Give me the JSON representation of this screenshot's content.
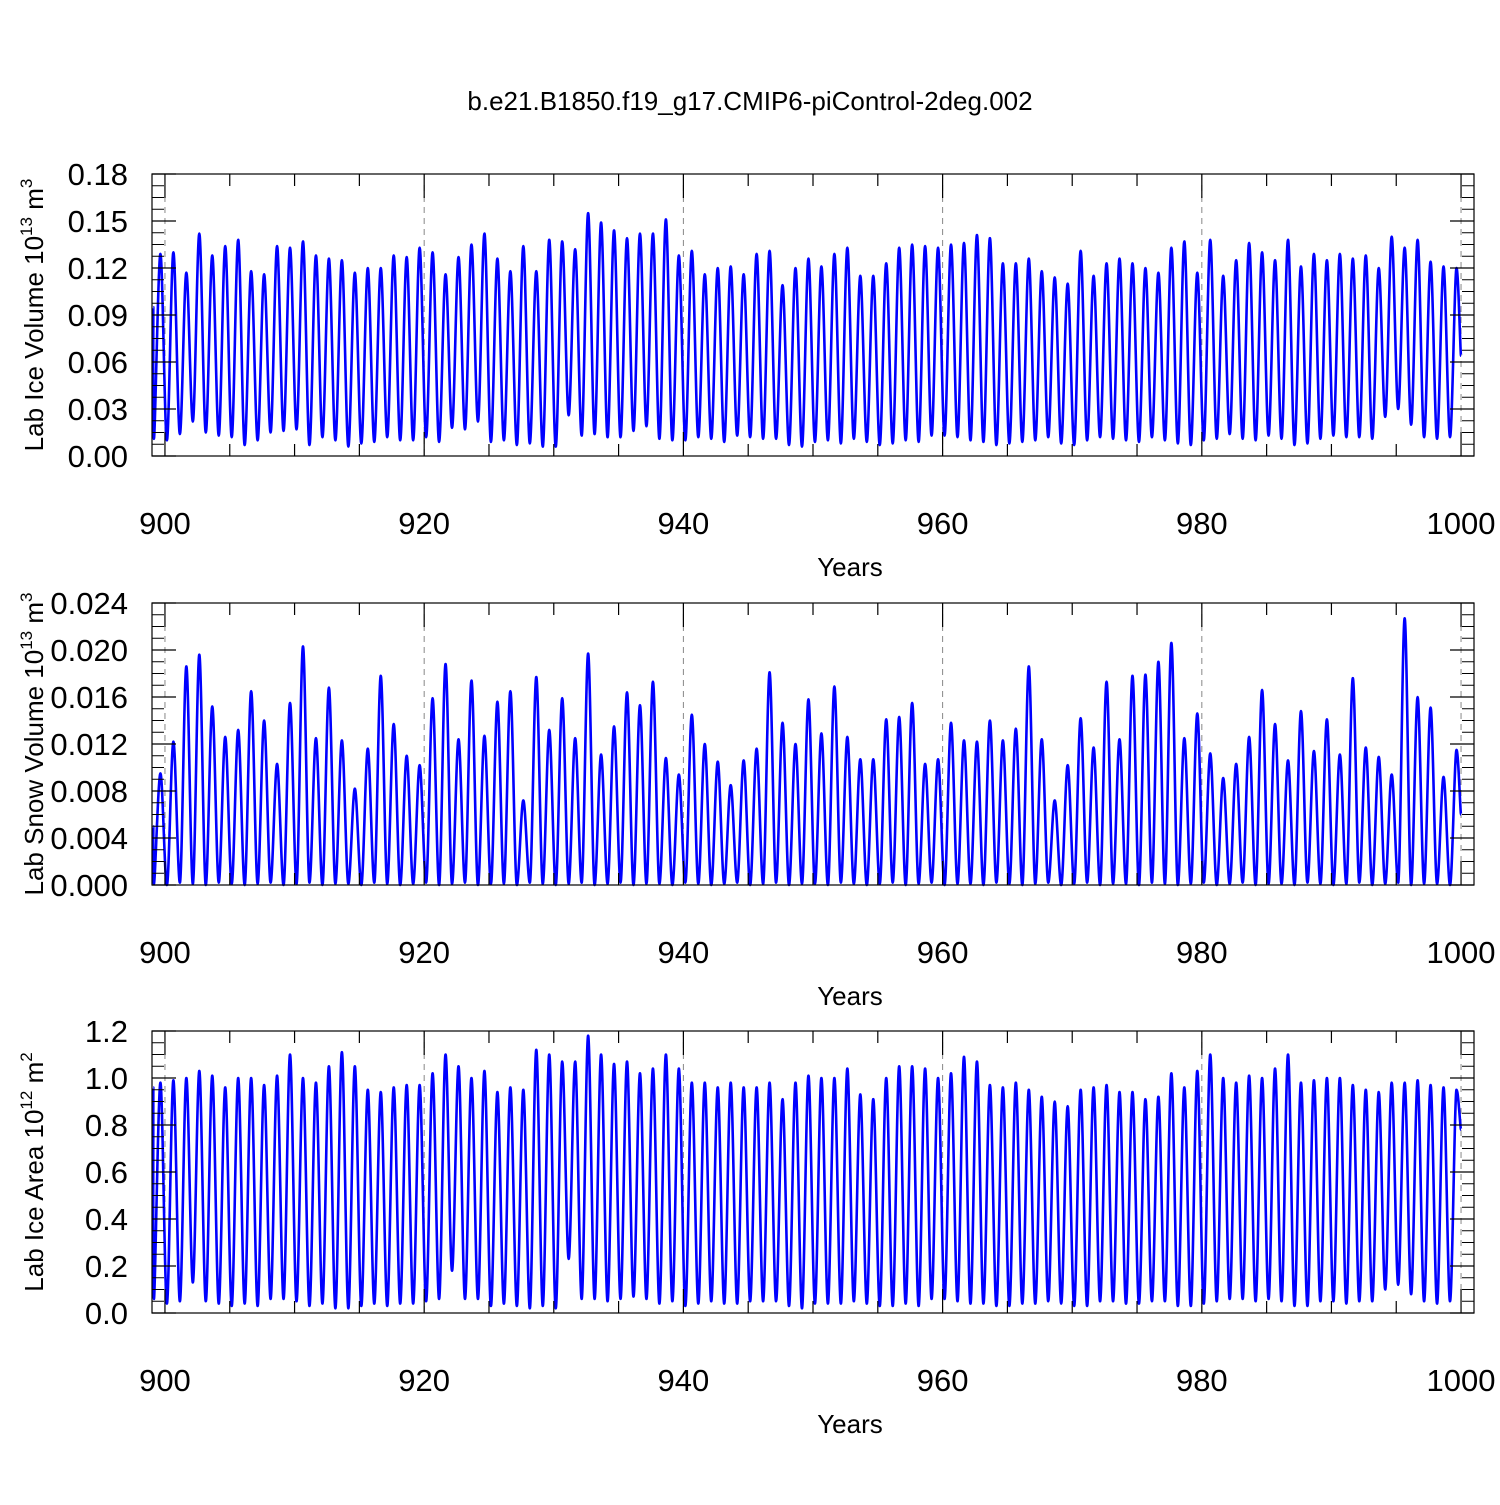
{
  "title": "b.e21.B1850.f19_g17.CMIP6-piControl-2deg.002",
  "line_color": "#0000ff",
  "chart_data": [
    {
      "type": "line",
      "title": "",
      "xlabel": "Years",
      "ylabel_main": "Lab Ice Volume 10",
      "ylabel_exp": "13",
      "ylabel_unit": " m",
      "ylabel_unit_exp": "3",
      "xlim": [
        899,
        1001
      ],
      "ylim": [
        0.0,
        0.18
      ],
      "x_ticks": [
        900,
        920,
        940,
        960,
        980,
        1000
      ],
      "x_tick_labels": [
        "900",
        "920",
        "940",
        "960",
        "980",
        "1000"
      ],
      "y_ticks": [
        0.0,
        0.03,
        0.06,
        0.09,
        0.12,
        0.15,
        0.18
      ],
      "y_tick_labels": [
        "0.00",
        "0.03",
        "0.06",
        "0.09",
        "0.12",
        "0.15",
        "0.18"
      ],
      "x_grid": true,
      "series": [
        {
          "start_year": 899.1,
          "end_year": 1000.0,
          "first_value": 0.095,
          "last_value": 0.064,
          "annual_max": [
            0.129,
            0.13,
            0.117,
            0.142,
            0.128,
            0.134,
            0.138,
            0.118,
            0.116,
            0.134,
            0.133,
            0.137,
            0.128,
            0.126,
            0.125,
            0.117,
            0.12,
            0.12,
            0.128,
            0.127,
            0.133,
            0.13,
            0.116,
            0.127,
            0.135,
            0.142,
            0.126,
            0.118,
            0.134,
            0.118,
            0.138,
            0.137,
            0.132,
            0.155,
            0.149,
            0.144,
            0.139,
            0.142,
            0.142,
            0.151,
            0.128,
            0.131,
            0.116,
            0.12,
            0.121,
            0.116,
            0.129,
            0.131,
            0.109,
            0.12,
            0.126,
            0.121,
            0.129,
            0.133,
            0.115,
            0.115,
            0.123,
            0.133,
            0.135,
            0.134,
            0.133,
            0.135,
            0.136,
            0.141,
            0.139,
            0.123,
            0.123,
            0.126,
            0.118,
            0.114,
            0.11,
            0.131,
            0.115,
            0.123,
            0.126,
            0.123,
            0.12,
            0.117,
            0.133,
            0.137,
            0.117,
            0.138,
            0.115,
            0.125,
            0.136,
            0.13,
            0.125,
            0.138,
            0.121,
            0.129,
            0.125,
            0.129,
            0.126,
            0.128,
            0.12,
            0.14,
            0.133,
            0.138,
            0.124,
            0.121,
            0.12
          ],
          "annual_min": [
            0.011,
            0.01,
            0.014,
            0.022,
            0.015,
            0.013,
            0.012,
            0.007,
            0.01,
            0.015,
            0.016,
            0.017,
            0.007,
            0.012,
            0.01,
            0.006,
            0.008,
            0.009,
            0.012,
            0.01,
            0.01,
            0.012,
            0.009,
            0.018,
            0.017,
            0.022,
            0.009,
            0.01,
            0.007,
            0.008,
            0.006,
            0.006,
            0.026,
            0.013,
            0.014,
            0.012,
            0.012,
            0.016,
            0.019,
            0.011,
            0.01,
            0.01,
            0.012,
            0.011,
            0.009,
            0.013,
            0.012,
            0.011,
            0.011,
            0.007,
            0.006,
            0.009,
            0.01,
            0.008,
            0.011,
            0.009,
            0.007,
            0.008,
            0.01,
            0.009,
            0.013,
            0.013,
            0.012,
            0.01,
            0.009,
            0.007,
            0.008,
            0.009,
            0.01,
            0.012,
            0.008,
            0.007,
            0.01,
            0.012,
            0.011,
            0.01,
            0.009,
            0.012,
            0.01,
            0.008,
            0.007,
            0.01,
            0.011,
            0.014,
            0.011,
            0.01,
            0.013,
            0.011,
            0.007,
            0.008,
            0.011,
            0.013,
            0.012,
            0.012,
            0.011,
            0.025,
            0.03,
            0.02,
            0.012,
            0.011,
            0.012
          ]
        }
      ]
    },
    {
      "type": "line",
      "title": "",
      "xlabel": "Years",
      "ylabel_main": "Lab Snow Volume 10",
      "ylabel_exp": "13",
      "ylabel_unit": " m",
      "ylabel_unit_exp": "3",
      "xlim": [
        899,
        1001
      ],
      "ylim": [
        0.0,
        0.024
      ],
      "x_ticks": [
        900,
        920,
        940,
        960,
        980,
        1000
      ],
      "x_tick_labels": [
        "900",
        "920",
        "940",
        "960",
        "980",
        "1000"
      ],
      "y_ticks": [
        0.0,
        0.004,
        0.008,
        0.012,
        0.016,
        0.02,
        0.024
      ],
      "y_tick_labels": [
        "0.000",
        "0.004",
        "0.008",
        "0.012",
        "0.016",
        "0.020",
        "0.024"
      ],
      "x_grid": true,
      "series": [
        {
          "start_year": 899.1,
          "end_year": 1000.0,
          "first_value": 0.005,
          "last_value": 0.006,
          "annual_max": [
            0.0095,
            0.0122,
            0.0186,
            0.0196,
            0.0152,
            0.0126,
            0.0132,
            0.0165,
            0.014,
            0.0103,
            0.0155,
            0.0203,
            0.0125,
            0.0168,
            0.0123,
            0.0082,
            0.0116,
            0.0178,
            0.0137,
            0.011,
            0.0102,
            0.0159,
            0.0188,
            0.0124,
            0.0174,
            0.0127,
            0.0156,
            0.0165,
            0.0072,
            0.0177,
            0.0132,
            0.0159,
            0.0125,
            0.0197,
            0.0111,
            0.0135,
            0.0164,
            0.0153,
            0.0173,
            0.0108,
            0.0094,
            0.0145,
            0.012,
            0.0105,
            0.0085,
            0.0106,
            0.0116,
            0.0181,
            0.0138,
            0.012,
            0.0158,
            0.0129,
            0.0169,
            0.0126,
            0.0107,
            0.0107,
            0.0141,
            0.0143,
            0.0155,
            0.0103,
            0.0107,
            0.0138,
            0.0123,
            0.0122,
            0.014,
            0.0123,
            0.0133,
            0.0186,
            0.0124,
            0.0072,
            0.0102,
            0.0142,
            0.0117,
            0.0173,
            0.0124,
            0.0178,
            0.0179,
            0.019,
            0.0206,
            0.0125,
            0.0146,
            0.0112,
            0.0091,
            0.0103,
            0.0126,
            0.0166,
            0.0137,
            0.0106,
            0.0148,
            0.0114,
            0.0141,
            0.0111,
            0.0176,
            0.0117,
            0.0109,
            0.0094,
            0.0227,
            0.016,
            0.0151,
            0.0092,
            0.0115
          ],
          "annual_min": [
            0.0001,
            0.0,
            0.0002,
            0.0001,
            0.0,
            0.0002,
            0.0001,
            0.0,
            0.0001,
            0.0002,
            0.0,
            0.0001,
            0.0002,
            0.0,
            0.0001,
            0.0001,
            0.0,
            0.0002,
            0.0001,
            0.0,
            0.0001,
            0.0002,
            0.0,
            0.0001,
            0.0002,
            0.0,
            0.0001,
            0.0001,
            0.0,
            0.0002,
            0.0001,
            0.0,
            0.0001,
            0.0002,
            0.0,
            0.0001,
            0.0002,
            0.0,
            0.0001,
            0.0001,
            0.0,
            0.0002,
            0.0001,
            0.0,
            0.0001,
            0.0002,
            0.0,
            0.0001,
            0.0002,
            0.0,
            0.0001,
            0.0001,
            0.0,
            0.0002,
            0.0001,
            0.0,
            0.0001,
            0.0002,
            0.0,
            0.0001,
            0.0002,
            0.0,
            0.0001,
            0.0001,
            0.0,
            0.0002,
            0.0001,
            0.0,
            0.0001,
            0.0002,
            0.0,
            0.0001,
            0.0002,
            0.0,
            0.0001,
            0.0001,
            0.0,
            0.0002,
            0.0001,
            0.0,
            0.0001,
            0.0002,
            0.0,
            0.0001,
            0.0002,
            0.0,
            0.0001,
            0.0001,
            0.0,
            0.0002,
            0.0001,
            0.0,
            0.0001,
            0.0002,
            0.0,
            0.0001,
            0.0002,
            0.0,
            0.0001,
            0.0001,
            0.0
          ]
        }
      ]
    },
    {
      "type": "line",
      "title": "",
      "xlabel": "Years",
      "ylabel_main": "Lab Ice Area 10",
      "ylabel_exp": "12",
      "ylabel_unit": " m",
      "ylabel_unit_exp": "2",
      "xlim": [
        899,
        1001
      ],
      "ylim": [
        0.0,
        1.2
      ],
      "x_ticks": [
        900,
        920,
        940,
        960,
        980,
        1000
      ],
      "x_tick_labels": [
        "900",
        "920",
        "940",
        "960",
        "980",
        "1000"
      ],
      "y_ticks": [
        0.0,
        0.2,
        0.4,
        0.6,
        0.8,
        1.0,
        1.2
      ],
      "y_tick_labels": [
        "0.0",
        "0.2",
        "0.4",
        "0.6",
        "0.8",
        "1.0",
        "1.2"
      ],
      "x_grid": true,
      "series": [
        {
          "start_year": 899.1,
          "end_year": 1000.0,
          "first_value": 0.96,
          "last_value": 0.78,
          "annual_max": [
            0.98,
            0.99,
            1.0,
            1.03,
            1.01,
            0.96,
            1.0,
            1.0,
            0.97,
            1.01,
            1.1,
            1.0,
            0.98,
            1.05,
            1.11,
            1.05,
            0.95,
            0.94,
            0.96,
            0.97,
            0.97,
            1.02,
            1.1,
            1.05,
            1.0,
            1.03,
            0.94,
            0.96,
            0.95,
            1.12,
            1.1,
            1.07,
            1.07,
            1.18,
            1.1,
            1.06,
            1.07,
            1.02,
            1.04,
            1.1,
            1.04,
            0.98,
            0.98,
            0.96,
            0.98,
            0.96,
            0.96,
            0.98,
            0.91,
            0.98,
            1.01,
            1.0,
            1.0,
            1.04,
            0.93,
            0.91,
            1.0,
            1.05,
            1.05,
            1.04,
            1.0,
            1.02,
            1.09,
            1.07,
            0.97,
            0.96,
            0.98,
            0.95,
            0.92,
            0.9,
            0.88,
            0.95,
            0.96,
            0.97,
            0.94,
            0.94,
            0.91,
            0.92,
            1.02,
            0.96,
            1.03,
            1.1,
            1.0,
            0.98,
            1.01,
            1.0,
            1.04,
            1.1,
            0.98,
            0.99,
            1.0,
            1.0,
            0.97,
            0.95,
            0.94,
            0.98,
            0.98,
            0.99,
            0.97,
            0.96,
            0.95
          ],
          "annual_min": [
            0.06,
            0.04,
            0.05,
            0.13,
            0.05,
            0.04,
            0.03,
            0.04,
            0.03,
            0.06,
            0.06,
            0.05,
            0.03,
            0.04,
            0.02,
            0.02,
            0.03,
            0.04,
            0.03,
            0.04,
            0.04,
            0.05,
            0.06,
            0.18,
            0.06,
            0.06,
            0.03,
            0.04,
            0.03,
            0.02,
            0.03,
            0.02,
            0.23,
            0.06,
            0.06,
            0.05,
            0.06,
            0.07,
            0.06,
            0.04,
            0.05,
            0.03,
            0.04,
            0.05,
            0.04,
            0.04,
            0.05,
            0.05,
            0.05,
            0.03,
            0.02,
            0.04,
            0.04,
            0.04,
            0.05,
            0.04,
            0.03,
            0.03,
            0.04,
            0.03,
            0.06,
            0.06,
            0.05,
            0.04,
            0.04,
            0.03,
            0.03,
            0.04,
            0.04,
            0.05,
            0.04,
            0.03,
            0.03,
            0.05,
            0.05,
            0.04,
            0.04,
            0.05,
            0.05,
            0.03,
            0.03,
            0.04,
            0.05,
            0.06,
            0.06,
            0.05,
            0.06,
            0.05,
            0.03,
            0.03,
            0.05,
            0.05,
            0.04,
            0.05,
            0.05,
            0.1,
            0.12,
            0.08,
            0.05,
            0.04,
            0.05
          ]
        }
      ]
    }
  ]
}
